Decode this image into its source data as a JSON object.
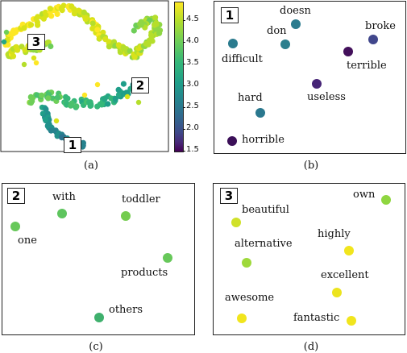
{
  "figure": {
    "captions": [
      "(a)",
      "(b)",
      "(c)",
      "(d)"
    ],
    "panel_tags": [
      "1",
      "2",
      "3"
    ],
    "colors": {
      "purple": "#3b0f58",
      "dark_blue": "#41478c",
      "teal_blue": "#2f7f8e",
      "teal": "#2b918b",
      "green": "#47b56a",
      "light_green": "#7ccf44",
      "yellow_green": "#bade2b",
      "yellow": "#f1e51d"
    }
  },
  "panel_a": {
    "tags": [
      "3",
      "2",
      "1"
    ],
    "colorbar": {
      "ticks": [
        "4.5",
        "4.0",
        "3.5",
        "3.0",
        "2.5",
        "2.0",
        "1.5"
      ],
      "range": [
        1.5,
        4.9
      ],
      "colormap": "viridis"
    }
  },
  "panel_b": {
    "tag": "1",
    "words": [
      {
        "label": "doesn",
        "color": "#2b7b8e"
      },
      {
        "label": "don",
        "color": "#2c7f8e"
      },
      {
        "label": "broke",
        "color": "#41478c"
      },
      {
        "label": "difficult",
        "color": "#2b7b8e"
      },
      {
        "label": "terrible",
        "color": "#43105b"
      },
      {
        "label": "useless",
        "color": "#462476"
      },
      {
        "label": "hard",
        "color": "#2a788e"
      },
      {
        "label": "horrible",
        "color": "#3b0f58"
      }
    ]
  },
  "panel_c": {
    "tag": "2",
    "words": [
      {
        "label": "with",
        "color": "#5ec55e"
      },
      {
        "label": "toddler",
        "color": "#74cc4f"
      },
      {
        "label": "one",
        "color": "#67c85a"
      },
      {
        "label": "products",
        "color": "#67c85a"
      },
      {
        "label": "others",
        "color": "#3fb06d"
      }
    ]
  },
  "panel_d": {
    "tag": "3",
    "words": [
      {
        "label": "own",
        "color": "#8fd640"
      },
      {
        "label": "beautiful",
        "color": "#d0e12a"
      },
      {
        "label": "highly",
        "color": "#f1e51d"
      },
      {
        "label": "alternative",
        "color": "#9ed93a"
      },
      {
        "label": "excellent",
        "color": "#ece41e"
      },
      {
        "label": "awesome",
        "color": "#f1e51d"
      },
      {
        "label": "fantastic",
        "color": "#f1e51d"
      }
    ]
  }
}
